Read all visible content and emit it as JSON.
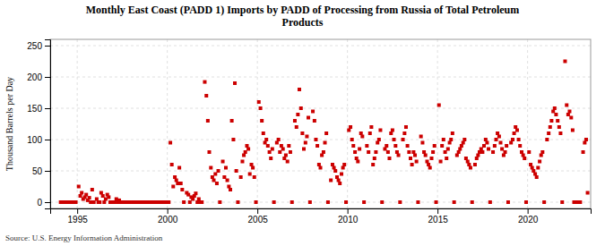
{
  "chart_data": {
    "type": "scatter",
    "title": "Monthly East Coast (PADD 1) Imports by PADD of Processing from Russia of Total Petroleum\nProducts",
    "ylabel": "Thousand Barrels per Day",
    "source": "Source: U.S. Energy Information Administration",
    "color": "#cc0000",
    "marker": "square",
    "grid": true,
    "xlim": [
      1993.5,
      2023.5
    ],
    "ylim": [
      -10,
      260
    ],
    "xticks": [
      1995,
      2000,
      2005,
      2010,
      2015,
      2020
    ],
    "yticks": [
      0,
      50,
      100,
      150,
      200,
      250
    ],
    "x": [
      1994.08,
      1994.17,
      1994.25,
      1994.33,
      1994.42,
      1994.5,
      1994.58,
      1994.67,
      1994.75,
      1994.83,
      1994.92,
      1995.08,
      1995.17,
      1995.25,
      1995.33,
      1995.42,
      1995.5,
      1995.58,
      1995.67,
      1995.75,
      1995.83,
      1995.92,
      1996.08,
      1996.17,
      1996.25,
      1996.33,
      1996.42,
      1996.5,
      1996.58,
      1996.67,
      1996.75,
      1996.83,
      1996.92,
      1997.08,
      1997.17,
      1997.25,
      1997.33,
      1997.42,
      1997.5,
      1997.58,
      1997.67,
      1997.75,
      1997.83,
      1997.92,
      1998.08,
      1998.17,
      1998.25,
      1998.33,
      1998.42,
      1998.5,
      1998.58,
      1998.67,
      1998.75,
      1998.83,
      1998.92,
      1999.08,
      1999.17,
      1999.25,
      1999.33,
      1999.42,
      1999.5,
      1999.58,
      1999.67,
      1999.75,
      1999.83,
      1999.92,
      2000.08,
      2000.17,
      2000.25,
      2000.33,
      2000.42,
      2000.5,
      2000.58,
      2000.67,
      2000.75,
      2000.83,
      2000.92,
      2001.08,
      2001.17,
      2001.25,
      2001.33,
      2001.42,
      2001.5,
      2001.58,
      2001.67,
      2001.75,
      2001.83,
      2001.92,
      2002.08,
      2002.17,
      2002.25,
      2002.33,
      2002.42,
      2002.5,
      2002.58,
      2002.67,
      2002.75,
      2002.83,
      2002.92,
      2003.08,
      2003.17,
      2003.25,
      2003.33,
      2003.42,
      2003.5,
      2003.58,
      2003.67,
      2003.75,
      2003.83,
      2003.92,
      2004.08,
      2004.17,
      2004.25,
      2004.33,
      2004.42,
      2004.5,
      2004.58,
      2004.67,
      2004.75,
      2004.83,
      2004.92,
      2005.08,
      2005.17,
      2005.25,
      2005.33,
      2005.42,
      2005.5,
      2005.58,
      2005.67,
      2005.75,
      2005.83,
      2005.92,
      2006.08,
      2006.17,
      2006.25,
      2006.33,
      2006.42,
      2006.5,
      2006.58,
      2006.67,
      2006.75,
      2006.83,
      2006.92,
      2007.08,
      2007.17,
      2007.25,
      2007.33,
      2007.42,
      2007.5,
      2007.58,
      2007.67,
      2007.75,
      2007.83,
      2007.92,
      2008.08,
      2008.17,
      2008.25,
      2008.33,
      2008.42,
      2008.5,
      2008.58,
      2008.67,
      2008.75,
      2008.83,
      2008.92,
      2009.08,
      2009.17,
      2009.25,
      2009.33,
      2009.42,
      2009.5,
      2009.58,
      2009.67,
      2009.75,
      2009.83,
      2009.92,
      2010.08,
      2010.17,
      2010.25,
      2010.33,
      2010.42,
      2010.5,
      2010.58,
      2010.67,
      2010.75,
      2010.83,
      2010.92,
      2011.08,
      2011.17,
      2011.25,
      2011.33,
      2011.42,
      2011.5,
      2011.58,
      2011.67,
      2011.75,
      2011.83,
      2011.92,
      2012.08,
      2012.17,
      2012.25,
      2012.33,
      2012.42,
      2012.5,
      2012.58,
      2012.67,
      2012.75,
      2012.83,
      2012.92,
      2013.08,
      2013.17,
      2013.25,
      2013.33,
      2013.42,
      2013.5,
      2013.58,
      2013.67,
      2013.75,
      2013.83,
      2013.92,
      2014.08,
      2014.17,
      2014.25,
      2014.33,
      2014.42,
      2014.5,
      2014.58,
      2014.67,
      2014.75,
      2014.83,
      2014.92,
      2015.08,
      2015.17,
      2015.25,
      2015.33,
      2015.42,
      2015.5,
      2015.58,
      2015.67,
      2015.75,
      2015.83,
      2015.92,
      2016.08,
      2016.17,
      2016.25,
      2016.33,
      2016.42,
      2016.5,
      2016.58,
      2016.67,
      2016.75,
      2016.83,
      2016.92,
      2017.08,
      2017.17,
      2017.25,
      2017.33,
      2017.42,
      2017.5,
      2017.58,
      2017.67,
      2017.75,
      2017.83,
      2017.92,
      2018.08,
      2018.17,
      2018.25,
      2018.33,
      2018.42,
      2018.5,
      2018.58,
      2018.67,
      2018.75,
      2018.83,
      2018.92,
      2019.08,
      2019.17,
      2019.25,
      2019.33,
      2019.42,
      2019.5,
      2019.58,
      2019.67,
      2019.75,
      2019.83,
      2019.92,
      2020.08,
      2020.17,
      2020.25,
      2020.33,
      2020.42,
      2020.5,
      2020.58,
      2020.67,
      2020.75,
      2020.83,
      2020.92,
      2021.08,
      2021.17,
      2021.25,
      2021.33,
      2021.42,
      2021.5,
      2021.58,
      2021.67,
      2021.75,
      2021.83,
      2021.92,
      2022.08,
      2022.17,
      2022.25,
      2022.33,
      2022.42,
      2022.5,
      2022.58,
      2022.67,
      2022.75,
      2022.83,
      2022.92,
      2023.08,
      2023.17,
      2023.25,
      2023.33
    ],
    "values": [
      0,
      0,
      0,
      0,
      0,
      0,
      0,
      0,
      0,
      0,
      0,
      25,
      10,
      15,
      5,
      8,
      12,
      3,
      7,
      0,
      20,
      0,
      5,
      0,
      0,
      15,
      10,
      0,
      5,
      12,
      8,
      0,
      0,
      0,
      5,
      0,
      3,
      0,
      0,
      0,
      0,
      0,
      0,
      0,
      0,
      0,
      0,
      0,
      0,
      0,
      0,
      0,
      0,
      0,
      0,
      0,
      0,
      0,
      0,
      0,
      0,
      0,
      0,
      0,
      0,
      0,
      0,
      95,
      60,
      25,
      40,
      35,
      30,
      55,
      30,
      20,
      0,
      15,
      12,
      0,
      8,
      5,
      10,
      14,
      0,
      5,
      0,
      0,
      192,
      170,
      130,
      80,
      55,
      40,
      35,
      45,
      30,
      50,
      0,
      65,
      40,
      55,
      35,
      25,
      20,
      130,
      100,
      190,
      50,
      0,
      40,
      65,
      75,
      80,
      90,
      85,
      45,
      60,
      55,
      40,
      0,
      160,
      150,
      130,
      110,
      95,
      100,
      90,
      80,
      70,
      85,
      0,
      95,
      100,
      80,
      90,
      85,
      70,
      75,
      65,
      90,
      80,
      0,
      130,
      120,
      140,
      180,
      150,
      110,
      85,
      95,
      105,
      135,
      0,
      145,
      130,
      100,
      90,
      60,
      55,
      75,
      80,
      95,
      110,
      0,
      35,
      60,
      55,
      50,
      40,
      35,
      30,
      45,
      55,
      60,
      0,
      115,
      120,
      100,
      90,
      80,
      70,
      65,
      85,
      110,
      105,
      0,
      90,
      80,
      110,
      120,
      60,
      70,
      80,
      95,
      100,
      115,
      0,
      85,
      90,
      80,
      70,
      110,
      115,
      100,
      90,
      80,
      75,
      0,
      100,
      110,
      120,
      90,
      80,
      70,
      60,
      80,
      75,
      65,
      0,
      105,
      95,
      80,
      75,
      65,
      60,
      55,
      70,
      80,
      90,
      0,
      155,
      65,
      90,
      100,
      80,
      70,
      85,
      95,
      100,
      110,
      0,
      75,
      80,
      85,
      90,
      95,
      100,
      70,
      65,
      60,
      55,
      0,
      60,
      70,
      75,
      80,
      85,
      80,
      90,
      100,
      95,
      85,
      0,
      80,
      90,
      100,
      110,
      105,
      95,
      85,
      75,
      80,
      90,
      0,
      95,
      100,
      110,
      120,
      115,
      100,
      90,
      80,
      75,
      70,
      0,
      80,
      60,
      55,
      50,
      45,
      40,
      55,
      65,
      75,
      80,
      0,
      100,
      110,
      120,
      130,
      145,
      150,
      140,
      130,
      120,
      110,
      0,
      225,
      155,
      140,
      145,
      135,
      115,
      0,
      0,
      0,
      0,
      0,
      80,
      95,
      100,
      15
    ]
  }
}
